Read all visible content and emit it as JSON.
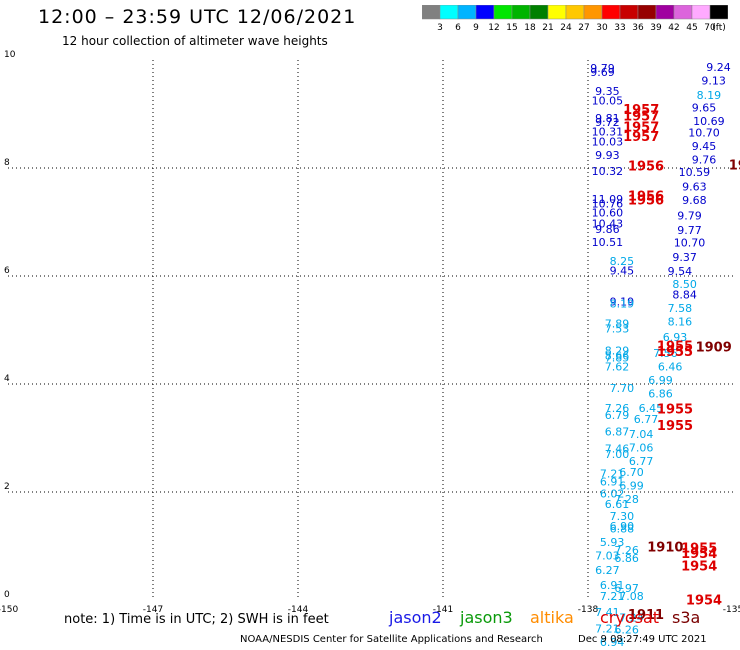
{
  "header": {
    "title": "12:00 – 23:59 UTC 12/06/2021",
    "subtitle": "12 hour collection of altimeter wave heights"
  },
  "colorbar": {
    "labels": [
      "3",
      "6",
      "9",
      "12",
      "15",
      "18",
      "21",
      "24",
      "27",
      "30",
      "33",
      "36",
      "39",
      "42",
      "45",
      "70",
      "(ft)"
    ],
    "colors": [
      "#808080",
      "#00ffff",
      "#00b4ff",
      "#0000ff",
      "#00e600",
      "#00b400",
      "#008000",
      "#ffff00",
      "#ffc800",
      "#ff9600",
      "#ff0000",
      "#c80000",
      "#960000",
      "#a000a0",
      "#dc64dc",
      "#ffaaff",
      "#000000"
    ]
  },
  "footer": {
    "note": "note:  1) Time is in UTC;  2) SWH is in feet",
    "satellites": [
      "jason2",
      "jason3",
      "altika",
      "cryosat",
      "s3a"
    ],
    "credit": "NOAA/NESDIS Center for Satellite Applications and Research",
    "timestamp": "Dec  9 08:27:49 UTC 2021"
  },
  "chart_data": {
    "type": "scatter",
    "xlim": [
      -150,
      -135
    ],
    "ylim": [
      0,
      10
    ],
    "x_ticks": [
      "-150",
      "-147",
      "-144",
      "-141",
      "-138",
      "-135"
    ],
    "y_ticks": [
      "0",
      "2",
      "4",
      "6",
      "8",
      "10"
    ],
    "grid": true,
    "palette": {
      "blue": "#0000cc",
      "cyan": "#00a8e8",
      "red": "#dd0000",
      "darkred": "#800000"
    },
    "labels": [
      {
        "x": -137.7,
        "y": 9.78,
        "text": "9.79",
        "color": "blue"
      },
      {
        "x": -137.7,
        "y": 9.7,
        "text": "9.69",
        "color": "blue"
      },
      {
        "x": -137.6,
        "y": 9.35,
        "text": "9.35",
        "color": "blue"
      },
      {
        "x": -137.6,
        "y": 9.18,
        "text": "10.05",
        "color": "blue"
      },
      {
        "x": -137.6,
        "y": 8.85,
        "text": "9.81",
        "color": "blue"
      },
      {
        "x": -137.6,
        "y": 8.78,
        "text": "9.72",
        "color": "blue"
      },
      {
        "x": -137.6,
        "y": 8.6,
        "text": "10.31",
        "color": "blue"
      },
      {
        "x": -137.6,
        "y": 8.42,
        "text": "10.03",
        "color": "blue"
      },
      {
        "x": -137.6,
        "y": 8.17,
        "text": "9.93",
        "color": "blue"
      },
      {
        "x": -137.6,
        "y": 7.87,
        "text": "10.32",
        "color": "blue"
      },
      {
        "x": -137.6,
        "y": 7.35,
        "text": "11.09",
        "color": "blue"
      },
      {
        "x": -137.6,
        "y": 7.27,
        "text": "10.76",
        "color": "blue"
      },
      {
        "x": -137.6,
        "y": 7.1,
        "text": "10.60",
        "color": "blue"
      },
      {
        "x": -137.6,
        "y": 6.9,
        "text": "10.43",
        "color": "blue"
      },
      {
        "x": -137.6,
        "y": 6.8,
        "text": "9.86",
        "color": "blue"
      },
      {
        "x": -137.6,
        "y": 6.56,
        "text": "10.51",
        "color": "blue"
      },
      {
        "x": -137.3,
        "y": 6.03,
        "text": "9.45",
        "color": "blue"
      },
      {
        "x": -137.3,
        "y": 5.45,
        "text": "9.19",
        "color": "blue"
      },
      {
        "x": -136.0,
        "y": 5.58,
        "text": "8.84",
        "color": "blue"
      },
      {
        "x": -135.3,
        "y": 9.8,
        "text": "9.24",
        "color": "blue"
      },
      {
        "x": -135.4,
        "y": 9.55,
        "text": "9.13",
        "color": "blue"
      },
      {
        "x": -135.6,
        "y": 9.05,
        "text": "9.65",
        "color": "blue"
      },
      {
        "x": -135.5,
        "y": 8.8,
        "text": "10.69",
        "color": "blue"
      },
      {
        "x": -135.6,
        "y": 8.58,
        "text": "10.70",
        "color": "blue"
      },
      {
        "x": -135.6,
        "y": 8.33,
        "text": "9.45",
        "color": "blue"
      },
      {
        "x": -135.6,
        "y": 8.08,
        "text": "9.76",
        "color": "blue"
      },
      {
        "x": -135.8,
        "y": 7.85,
        "text": "10.59",
        "color": "blue"
      },
      {
        "x": -135.8,
        "y": 7.58,
        "text": "9.63",
        "color": "blue"
      },
      {
        "x": -135.8,
        "y": 7.33,
        "text": "9.68",
        "color": "blue"
      },
      {
        "x": -135.9,
        "y": 7.05,
        "text": "9.79",
        "color": "blue"
      },
      {
        "x": -135.9,
        "y": 6.78,
        "text": "9.77",
        "color": "blue"
      },
      {
        "x": -135.9,
        "y": 6.55,
        "text": "10.70",
        "color": "blue"
      },
      {
        "x": -136.0,
        "y": 6.28,
        "text": "9.37",
        "color": "blue"
      },
      {
        "x": -136.1,
        "y": 6.02,
        "text": "9.54",
        "color": "blue"
      },
      {
        "x": -135.5,
        "y": 9.28,
        "text": "8.19",
        "color": "cyan"
      },
      {
        "x": -137.3,
        "y": 6.2,
        "text": "8.25",
        "color": "cyan"
      },
      {
        "x": -137.3,
        "y": 5.42,
        "text": "8.19",
        "color": "cyan"
      },
      {
        "x": -136.0,
        "y": 5.78,
        "text": "8.50",
        "color": "cyan"
      },
      {
        "x": -136.1,
        "y": 5.33,
        "text": "7.58",
        "color": "cyan"
      },
      {
        "x": -136.1,
        "y": 5.08,
        "text": "8.16",
        "color": "cyan"
      },
      {
        "x": -136.2,
        "y": 4.8,
        "text": "6.93",
        "color": "cyan"
      },
      {
        "x": -137.4,
        "y": 5.05,
        "text": "7.89",
        "color": "cyan"
      },
      {
        "x": -137.4,
        "y": 4.95,
        "text": "7.53",
        "color": "cyan"
      },
      {
        "x": -137.4,
        "y": 4.55,
        "text": "8.29",
        "color": "cyan"
      },
      {
        "x": -137.4,
        "y": 4.45,
        "text": "8.66",
        "color": "cyan"
      },
      {
        "x": -137.4,
        "y": 4.42,
        "text": "7.85",
        "color": "cyan"
      },
      {
        "x": -137.4,
        "y": 4.25,
        "text": "7.62",
        "color": "cyan"
      },
      {
        "x": -136.4,
        "y": 4.5,
        "text": "7.56",
        "color": "cyan"
      },
      {
        "x": -136.3,
        "y": 4.25,
        "text": "6.46",
        "color": "cyan"
      },
      {
        "x": -136.5,
        "y": 4.0,
        "text": "6.99",
        "color": "cyan"
      },
      {
        "x": -137.3,
        "y": 3.85,
        "text": "7.70",
        "color": "cyan"
      },
      {
        "x": -136.5,
        "y": 3.75,
        "text": "6.86",
        "color": "cyan"
      },
      {
        "x": -137.4,
        "y": 3.48,
        "text": "7.26",
        "color": "cyan"
      },
      {
        "x": -136.7,
        "y": 3.48,
        "text": "6.45",
        "color": "cyan"
      },
      {
        "x": -137.4,
        "y": 3.35,
        "text": "6.79",
        "color": "cyan"
      },
      {
        "x": -136.8,
        "y": 3.28,
        "text": "6.77",
        "color": "cyan"
      },
      {
        "x": -137.4,
        "y": 3.05,
        "text": "6.87",
        "color": "cyan"
      },
      {
        "x": -136.9,
        "y": 3.0,
        "text": "7.04",
        "color": "cyan"
      },
      {
        "x": -136.9,
        "y": 2.75,
        "text": "7.06",
        "color": "cyan"
      },
      {
        "x": -137.4,
        "y": 2.73,
        "text": "7.46",
        "color": "cyan"
      },
      {
        "x": -137.4,
        "y": 2.63,
        "text": "7.00",
        "color": "cyan"
      },
      {
        "x": -136.9,
        "y": 2.5,
        "text": "6.77",
        "color": "cyan"
      },
      {
        "x": -137.5,
        "y": 2.27,
        "text": "7.21",
        "color": "cyan"
      },
      {
        "x": -137.1,
        "y": 2.3,
        "text": "6.70",
        "color": "cyan"
      },
      {
        "x": -137.5,
        "y": 2.12,
        "text": "6.91",
        "color": "cyan"
      },
      {
        "x": -137.1,
        "y": 2.05,
        "text": "6.99",
        "color": "cyan"
      },
      {
        "x": -137.5,
        "y": 1.9,
        "text": "6.02",
        "color": "cyan"
      },
      {
        "x": -137.2,
        "y": 1.8,
        "text": "7.28",
        "color": "cyan"
      },
      {
        "x": -137.4,
        "y": 1.7,
        "text": "6.61",
        "color": "cyan"
      },
      {
        "x": -137.3,
        "y": 1.48,
        "text": "7.30",
        "color": "cyan"
      },
      {
        "x": -137.3,
        "y": 1.3,
        "text": "6.90",
        "color": "cyan"
      },
      {
        "x": -137.3,
        "y": 1.25,
        "text": "6.88",
        "color": "cyan"
      },
      {
        "x": -137.5,
        "y": 1.0,
        "text": "5.93",
        "color": "cyan"
      },
      {
        "x": -137.2,
        "y": 0.85,
        "text": "7.26",
        "color": "cyan"
      },
      {
        "x": -137.6,
        "y": 0.75,
        "text": "7.03",
        "color": "cyan"
      },
      {
        "x": -137.2,
        "y": 0.7,
        "text": "6.86",
        "color": "cyan"
      },
      {
        "x": -137.6,
        "y": 0.48,
        "text": "6.27",
        "color": "cyan"
      },
      {
        "x": -137.5,
        "y": 0.2,
        "text": "6.91",
        "color": "cyan"
      },
      {
        "x": -137.2,
        "y": 0.15,
        "text": "6.97",
        "color": "cyan"
      },
      {
        "x": -137.5,
        "y": 0.0,
        "text": "7.21",
        "color": "cyan"
      },
      {
        "x": -137.1,
        "y": 0.0,
        "text": "7.08",
        "color": "cyan"
      },
      {
        "x": -137.6,
        "y": -0.3,
        "text": "7.41",
        "color": "cyan"
      },
      {
        "x": -137.1,
        "y": -0.4,
        "text": "7.24",
        "color": "cyan"
      },
      {
        "x": -137.6,
        "y": -0.6,
        "text": "7.21",
        "color": "cyan"
      },
      {
        "x": -137.2,
        "y": -0.62,
        "text": "6.26",
        "color": "cyan"
      },
      {
        "x": -137.5,
        "y": -0.85,
        "text": "6.94",
        "color": "cyan"
      },
      {
        "x": -136.9,
        "y": 9.0,
        "text": "1957",
        "color": "red"
      },
      {
        "x": -136.9,
        "y": 8.88,
        "text": "1957",
        "color": "red"
      },
      {
        "x": -136.9,
        "y": 8.68,
        "text": "1957",
        "color": "red"
      },
      {
        "x": -136.9,
        "y": 8.5,
        "text": "1957",
        "color": "red"
      },
      {
        "x": -136.8,
        "y": 7.95,
        "text": "1956",
        "color": "red"
      },
      {
        "x": -136.8,
        "y": 7.4,
        "text": "1956",
        "color": "red"
      },
      {
        "x": -136.8,
        "y": 7.32,
        "text": "1956",
        "color": "red"
      },
      {
        "x": -136.2,
        "y": 4.62,
        "text": "1955",
        "color": "red"
      },
      {
        "x": -136.2,
        "y": 4.52,
        "text": "1955",
        "color": "red"
      },
      {
        "x": -136.2,
        "y": 3.45,
        "text": "1955",
        "color": "red"
      },
      {
        "x": -136.2,
        "y": 3.15,
        "text": "1955",
        "color": "red"
      },
      {
        "x": -135.7,
        "y": 0.88,
        "text": "1955",
        "color": "red"
      },
      {
        "x": -135.7,
        "y": 0.78,
        "text": "1954",
        "color": "red"
      },
      {
        "x": -135.7,
        "y": 0.55,
        "text": "1954",
        "color": "red"
      },
      {
        "x": -135.6,
        "y": -0.08,
        "text": "1954",
        "color": "red"
      },
      {
        "x": -134.9,
        "y": 7.97,
        "text": "19",
        "color": "darkred"
      },
      {
        "x": -135.4,
        "y": 4.6,
        "text": "1909",
        "color": "darkred"
      },
      {
        "x": -136.4,
        "y": 0.9,
        "text": "1910",
        "color": "darkred"
      },
      {
        "x": -136.8,
        "y": -0.35,
        "text": "1911",
        "color": "darkred"
      }
    ]
  }
}
